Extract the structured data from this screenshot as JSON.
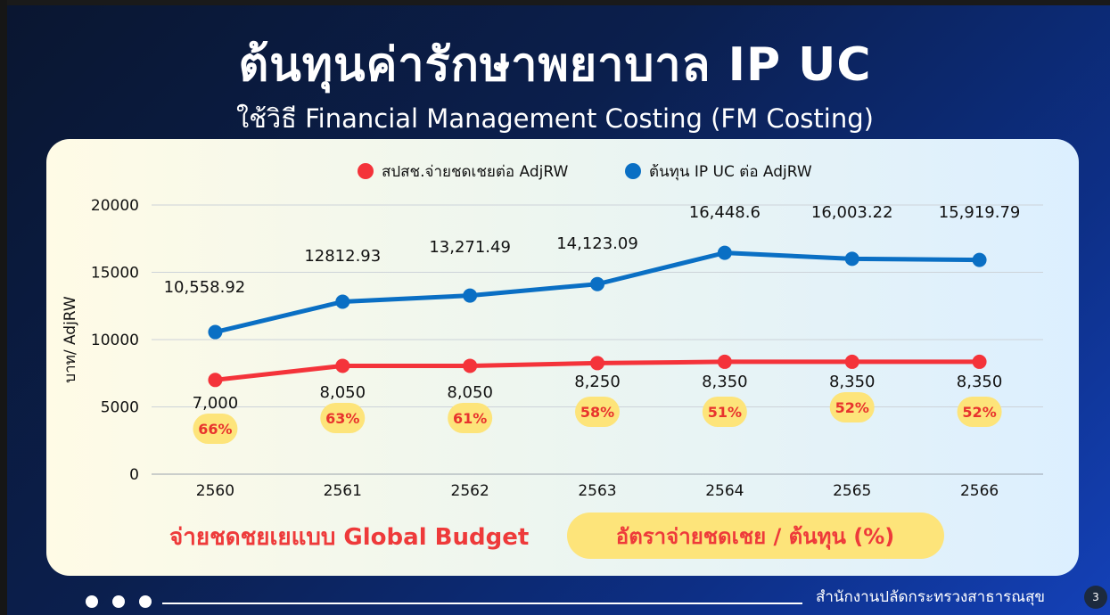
{
  "title": "ต้นทุนค่ารักษาพยาบาล IP UC",
  "subtitle": "ใช้วิธี Financial Management Costing (FM Costing)",
  "footer": {
    "organization": "สำนักงานปลัดกระทรวงสาธารณสุข",
    "page_number": "3"
  },
  "colors": {
    "red_series": "#f4333a",
    "blue_series": "#0a6fc4",
    "badge": "#fde47a",
    "badge_text": "#e8332d"
  },
  "chart_data": {
    "type": "line",
    "categories": [
      "2560",
      "2561",
      "2562",
      "2563",
      "2564",
      "2565",
      "2566"
    ],
    "ylabel": "บาท/ AdjRW",
    "ylim": [
      0,
      20000
    ],
    "yticks": [
      0,
      5000,
      10000,
      15000,
      20000
    ],
    "grid": true,
    "legend_position": "top",
    "series": [
      {
        "name": "สปสช.จ่ายชดเชยต่อ AdjRW",
        "color": "#f4333a",
        "values": [
          7000,
          8050,
          8050,
          8250,
          8350,
          8350,
          8350
        ],
        "labels": [
          "7,000",
          "8,050",
          "8,050",
          "8,250",
          "8,350",
          "8,350",
          "8,350"
        ]
      },
      {
        "name": "ต้นทุน IP UC ต่อ AdjRW",
        "color": "#0a6fc4",
        "values": [
          10558.92,
          12812.93,
          13271.49,
          14123.09,
          16448.6,
          16003.22,
          15919.79
        ],
        "labels": [
          "10,558.92",
          "12812.93",
          "13,271.49",
          "14,123.09",
          "16,448.6",
          "16,003.22",
          "15,919.79"
        ]
      }
    ],
    "ratio_badges": [
      "66%",
      "63%",
      "61%",
      "58%",
      "51%",
      "52%",
      "52%"
    ],
    "annotations": [
      "จ่ายชดชยเยแบบ Global Budget",
      "อัตราจ่ายชดเชย / ต้นทุน (%)"
    ]
  }
}
